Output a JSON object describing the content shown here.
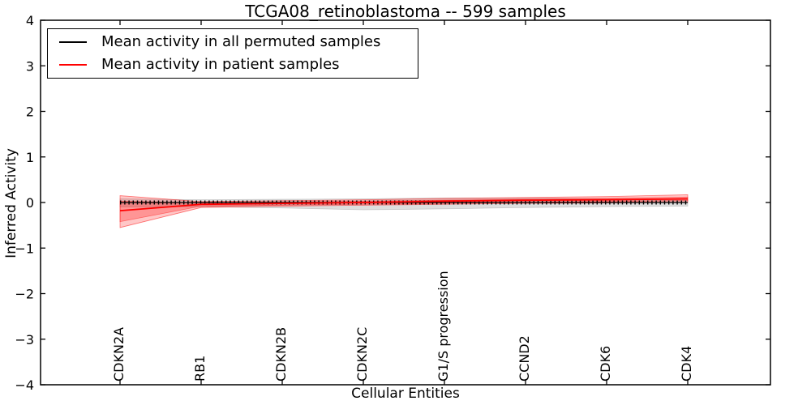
{
  "title": "TCGA08_retinoblastoma -- 599 samples",
  "axes": {
    "xlabel": "Cellular Entities",
    "ylabel": "Inferred Activity",
    "y_tick_labels": [
      "4",
      "3",
      "2",
      "1",
      "0",
      "−1",
      "−2",
      "−3",
      "−4"
    ],
    "y_tick_values": [
      4,
      3,
      2,
      1,
      0,
      -1,
      -2,
      -3,
      -4
    ]
  },
  "legend": {
    "items": [
      {
        "label": "Mean activity in all permuted samples",
        "color": "#000000"
      },
      {
        "label": "Mean activity in patient samples",
        "color": "#ff0000"
      }
    ]
  },
  "chart_data": {
    "type": "line",
    "title": "TCGA08_retinoblastoma -- 599 samples",
    "xlabel": "Cellular Entities",
    "ylabel": "Inferred Activity",
    "ylim": [
      -4,
      4
    ],
    "grid": false,
    "legend_position": "upper left",
    "categories": [
      "CDKN2A",
      "RB1",
      "CDKN2B",
      "CDKN2C",
      "G1/S progression",
      "CCND2",
      "CDK6",
      "CDK4"
    ],
    "series": [
      {
        "name": "Mean activity in all permuted samples",
        "color": "#000000",
        "marker": "vertical-dash",
        "values": [
          0.0,
          0.0,
          0.0,
          0.0,
          0.0,
          0.0,
          0.0,
          0.0
        ],
        "band_color": "#999999",
        "band_upper": [
          0.08,
          0.06,
          0.07,
          0.08,
          0.1,
          0.1,
          0.08,
          0.07
        ],
        "band_lower": [
          -0.1,
          -0.09,
          -0.12,
          -0.16,
          -0.14,
          -0.11,
          -0.09,
          -0.08
        ]
      },
      {
        "name": "Mean activity in patient samples",
        "color": "#ff0000",
        "marker": "none",
        "values": [
          -0.18,
          -0.04,
          -0.02,
          0.0,
          0.03,
          0.05,
          0.06,
          0.08
        ],
        "band_color": "#ff0000",
        "band_upper": [
          0.15,
          0.02,
          0.04,
          0.06,
          0.09,
          0.11,
          0.13,
          0.17
        ],
        "band_lower": [
          -0.55,
          -0.11,
          -0.08,
          -0.06,
          -0.04,
          -0.02,
          -0.01,
          0.0
        ],
        "band_inner_upper": [
          0.03,
          -0.01,
          0.01,
          0.03,
          0.05,
          0.07,
          0.09,
          0.12
        ],
        "band_inner_lower": [
          -0.42,
          -0.08,
          -0.06,
          -0.04,
          -0.02,
          0.0,
          0.02,
          0.04
        ]
      }
    ]
  }
}
